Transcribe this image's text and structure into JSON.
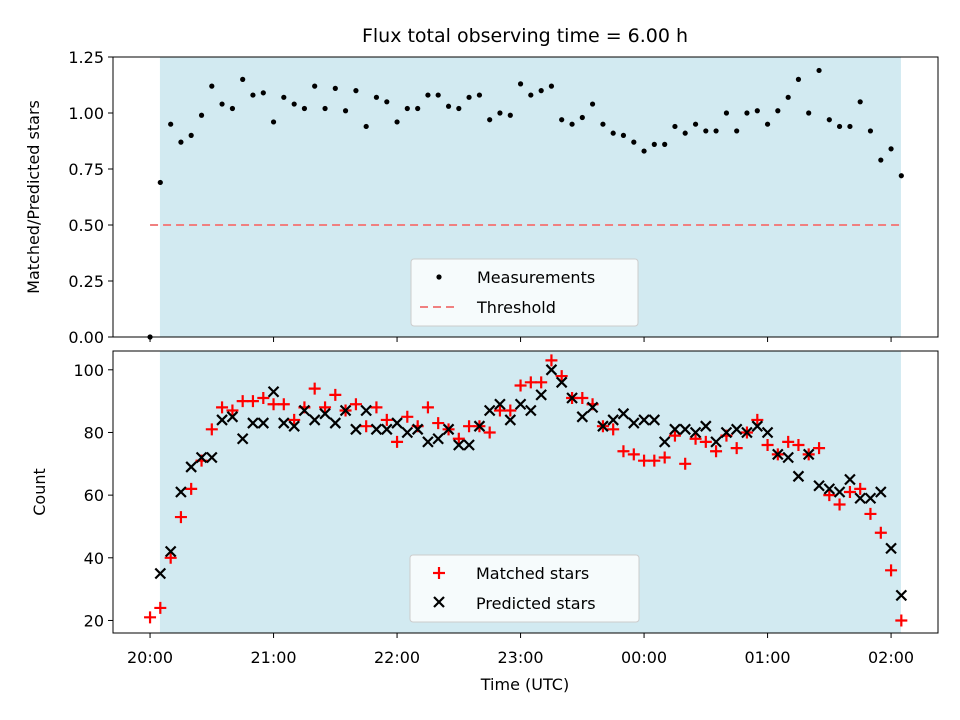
{
  "figure_title": "Flux total observing time = 6.00 h",
  "xlabel": "Time (UTC)",
  "chart_data": [
    {
      "type": "scatter",
      "ylabel": "Matched/Predicted stars",
      "ylim": [
        0,
        1.25
      ],
      "yticks": [
        "0.00",
        "0.25",
        "0.50",
        "0.75",
        "1.00",
        "1.25"
      ],
      "threshold": 0.5,
      "observing_window_hours": [
        0.08,
        6.08
      ],
      "legend": {
        "placement": "lower-center",
        "entries": [
          "Measurements",
          "Threshold"
        ]
      },
      "series": [
        {
          "name": "Measurements",
          "x": [
            0.0,
            0.083,
            0.167,
            0.25,
            0.333,
            0.417,
            0.5,
            0.583,
            0.667,
            0.75,
            0.833,
            0.917,
            1.0,
            1.083,
            1.167,
            1.25,
            1.333,
            1.417,
            1.5,
            1.583,
            1.667,
            1.75,
            1.833,
            1.917,
            2.0,
            2.083,
            2.167,
            2.25,
            2.333,
            2.417,
            2.5,
            2.583,
            2.667,
            2.75,
            2.833,
            2.917,
            3.0,
            3.083,
            3.167,
            3.25,
            3.333,
            3.417,
            3.5,
            3.583,
            3.667,
            3.75,
            3.833,
            3.917,
            4.0,
            4.083,
            4.167,
            4.25,
            4.333,
            4.417,
            4.5,
            4.583,
            4.667,
            4.75,
            4.833,
            4.917,
            5.0,
            5.083,
            5.167,
            5.25,
            5.333,
            5.417,
            5.5,
            5.583,
            5.667,
            5.75,
            5.833,
            5.917,
            6.0,
            6.083
          ],
          "y": [
            0.0,
            0.69,
            0.95,
            0.87,
            0.9,
            0.99,
            1.12,
            1.04,
            1.02,
            1.15,
            1.08,
            1.09,
            0.96,
            1.07,
            1.04,
            1.02,
            1.12,
            1.02,
            1.11,
            1.01,
            1.1,
            0.94,
            1.07,
            1.05,
            0.96,
            1.02,
            1.02,
            1.08,
            1.08,
            1.03,
            1.02,
            1.07,
            1.08,
            0.97,
            1.0,
            0.99,
            1.13,
            1.08,
            1.1,
            1.12,
            0.97,
            0.95,
            0.98,
            1.04,
            0.95,
            0.91,
            0.9,
            0.87,
            0.83,
            0.86,
            0.86,
            0.94,
            0.91,
            0.95,
            0.92,
            0.92,
            1.0,
            0.92,
            1.0,
            1.01,
            0.95,
            1.01,
            1.07,
            1.15,
            1.0,
            1.19,
            0.97,
            0.94,
            0.94,
            1.05,
            0.92,
            0.79,
            0.84,
            0.72
          ]
        }
      ]
    },
    {
      "type": "scatter",
      "ylabel": "Count",
      "ylim": [
        16,
        106
      ],
      "yticks": [
        "20",
        "40",
        "60",
        "80",
        "100"
      ],
      "xticks": [
        "20:00",
        "21:00",
        "22:00",
        "23:00",
        "00:00",
        "01:00",
        "02:00"
      ],
      "xtick_hours": [
        0,
        1,
        2,
        3,
        4,
        5,
        6
      ],
      "xlim": [
        -0.3,
        6.38
      ],
      "observing_window_hours": [
        0.08,
        6.08
      ],
      "legend": {
        "placement": "lower-center",
        "entries": [
          "Matched stars",
          "Predicted stars"
        ]
      },
      "series": [
        {
          "name": "Matched stars",
          "color": "#ff0000",
          "x": [
            0.0,
            0.083,
            0.167,
            0.25,
            0.333,
            0.417,
            0.5,
            0.583,
            0.667,
            0.75,
            0.833,
            0.917,
            1.0,
            1.083,
            1.167,
            1.25,
            1.333,
            1.417,
            1.5,
            1.583,
            1.667,
            1.75,
            1.833,
            1.917,
            2.0,
            2.083,
            2.167,
            2.25,
            2.333,
            2.417,
            2.5,
            2.583,
            2.667,
            2.75,
            2.833,
            2.917,
            3.0,
            3.083,
            3.167,
            3.25,
            3.333,
            3.417,
            3.5,
            3.583,
            3.667,
            3.75,
            3.833,
            3.917,
            4.0,
            4.083,
            4.167,
            4.25,
            4.333,
            4.417,
            4.5,
            4.583,
            4.667,
            4.75,
            4.833,
            4.917,
            5.0,
            5.083,
            5.167,
            5.25,
            5.333,
            5.417,
            5.5,
            5.583,
            5.667,
            5.75,
            5.833,
            5.917,
            6.0,
            6.083
          ],
          "y": [
            21,
            24,
            40,
            53,
            62,
            71,
            81,
            88,
            87,
            90,
            90,
            91,
            89,
            89,
            84,
            88,
            94,
            88,
            92,
            87,
            89,
            82,
            88,
            84,
            77,
            85,
            82,
            88,
            83,
            81,
            78,
            82,
            82,
            80,
            87,
            87,
            95,
            96,
            96,
            103,
            98,
            91,
            91,
            89,
            82,
            81,
            74,
            73,
            71,
            71,
            72,
            79,
            70,
            78,
            77,
            74,
            79,
            75,
            80,
            84,
            76,
            73,
            77,
            76,
            73,
            75,
            60,
            57,
            61,
            62,
            54,
            48,
            36,
            20
          ]
        },
        {
          "name": "Predicted stars",
          "color": "#000000",
          "x": [
            0.083,
            0.167,
            0.25,
            0.333,
            0.417,
            0.5,
            0.583,
            0.667,
            0.75,
            0.833,
            0.917,
            1.0,
            1.083,
            1.167,
            1.25,
            1.333,
            1.417,
            1.5,
            1.583,
            1.667,
            1.75,
            1.833,
            1.917,
            2.0,
            2.083,
            2.167,
            2.25,
            2.333,
            2.417,
            2.5,
            2.583,
            2.667,
            2.75,
            2.833,
            2.917,
            3.0,
            3.083,
            3.167,
            3.25,
            3.333,
            3.417,
            3.5,
            3.583,
            3.667,
            3.75,
            3.833,
            3.917,
            4.0,
            4.083,
            4.167,
            4.25,
            4.333,
            4.417,
            4.5,
            4.583,
            4.667,
            4.75,
            4.833,
            4.917,
            5.0,
            5.083,
            5.167,
            5.25,
            5.333,
            5.417,
            5.5,
            5.583,
            5.667,
            5.75,
            5.833,
            5.917,
            6.0,
            6.083
          ],
          "y": [
            35,
            42,
            61,
            69,
            72,
            72,
            84,
            85,
            78,
            83,
            83,
            93,
            83,
            82,
            87,
            84,
            86,
            83,
            87,
            81,
            87,
            81,
            81,
            83,
            80,
            81,
            77,
            78,
            81,
            76,
            76,
            82,
            87,
            89,
            84,
            89,
            87,
            92,
            100,
            96,
            91,
            85,
            88,
            82,
            84,
            86,
            83,
            84,
            84,
            77,
            81,
            81,
            80,
            82,
            77,
            80,
            81,
            80,
            82,
            80,
            73,
            72,
            66,
            73,
            63,
            62,
            61,
            65,
            59,
            59,
            61,
            43,
            28
          ]
        }
      ]
    }
  ]
}
